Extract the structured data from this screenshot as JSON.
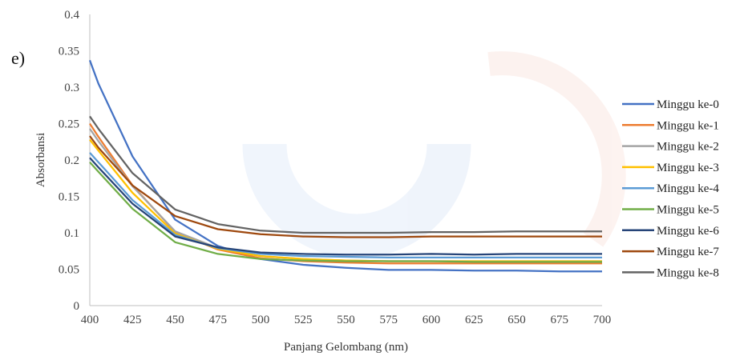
{
  "panel_label": "e)",
  "chart_data": {
    "type": "line",
    "title": "",
    "xlabel": "Panjang Gelombang (nm)",
    "ylabel": "Absorbansi",
    "xlim": [
      400,
      700
    ],
    "ylim": [
      0,
      0.4
    ],
    "x_ticks": [
      400,
      425,
      450,
      475,
      500,
      525,
      550,
      575,
      600,
      625,
      650,
      675,
      700
    ],
    "y_ticks": [
      0,
      0.05,
      0.1,
      0.15,
      0.2,
      0.25,
      0.3,
      0.35,
      0.4
    ],
    "y_tick_labels": [
      "0",
      "0.05",
      "0.1",
      "0.15",
      "0.2",
      "0.25",
      "0.3",
      "0.35",
      "0.4"
    ],
    "grid": false,
    "legend_position": "right",
    "x": [
      400,
      405,
      425,
      450,
      475,
      500,
      525,
      550,
      575,
      600,
      625,
      650,
      675,
      700
    ],
    "series": [
      {
        "name": "Minggu ke-0",
        "color": "#4472C4",
        "values": [
          0.337,
          0.305,
          0.205,
          0.118,
          0.082,
          0.064,
          0.056,
          0.052,
          0.049,
          0.049,
          0.048,
          0.048,
          0.047,
          0.047
        ]
      },
      {
        "name": "Minggu ke-1",
        "color": "#ED7D31",
        "values": [
          0.25,
          0.232,
          0.165,
          0.101,
          0.077,
          0.065,
          0.061,
          0.059,
          0.058,
          0.058,
          0.058,
          0.058,
          0.058,
          0.058
        ]
      },
      {
        "name": "Minggu ke-2",
        "color": "#A5A5A5",
        "values": [
          0.243,
          0.226,
          0.164,
          0.102,
          0.079,
          0.068,
          0.064,
          0.062,
          0.061,
          0.061,
          0.061,
          0.061,
          0.061,
          0.061
        ]
      },
      {
        "name": "Minggu ke-3",
        "color": "#FFC000",
        "values": [
          0.228,
          0.213,
          0.155,
          0.099,
          0.078,
          0.068,
          0.064,
          0.062,
          0.061,
          0.061,
          0.061,
          0.061,
          0.061,
          0.061
        ]
      },
      {
        "name": "Minggu ke-4",
        "color": "#5B9BD5",
        "values": [
          0.21,
          0.197,
          0.145,
          0.097,
          0.079,
          0.071,
          0.068,
          0.067,
          0.066,
          0.066,
          0.066,
          0.066,
          0.066,
          0.066
        ]
      },
      {
        "name": "Minggu ke-5",
        "color": "#70AD47",
        "values": [
          0.197,
          0.184,
          0.133,
          0.087,
          0.071,
          0.064,
          0.062,
          0.061,
          0.061,
          0.061,
          0.06,
          0.06,
          0.06,
          0.06
        ]
      },
      {
        "name": "Minggu ke-6",
        "color": "#264478",
        "values": [
          0.203,
          0.19,
          0.14,
          0.095,
          0.08,
          0.073,
          0.071,
          0.07,
          0.07,
          0.071,
          0.07,
          0.071,
          0.071,
          0.071
        ]
      },
      {
        "name": "Minggu ke-7",
        "color": "#9E480E",
        "values": [
          0.233,
          0.217,
          0.165,
          0.123,
          0.105,
          0.098,
          0.095,
          0.094,
          0.094,
          0.095,
          0.095,
          0.095,
          0.095,
          0.095
        ]
      },
      {
        "name": "Minggu ke-8",
        "color": "#636363",
        "values": [
          0.26,
          0.243,
          0.182,
          0.132,
          0.112,
          0.103,
          0.1,
          0.1,
          0.1,
          0.101,
          0.101,
          0.102,
          0.102,
          0.102
        ]
      }
    ]
  }
}
